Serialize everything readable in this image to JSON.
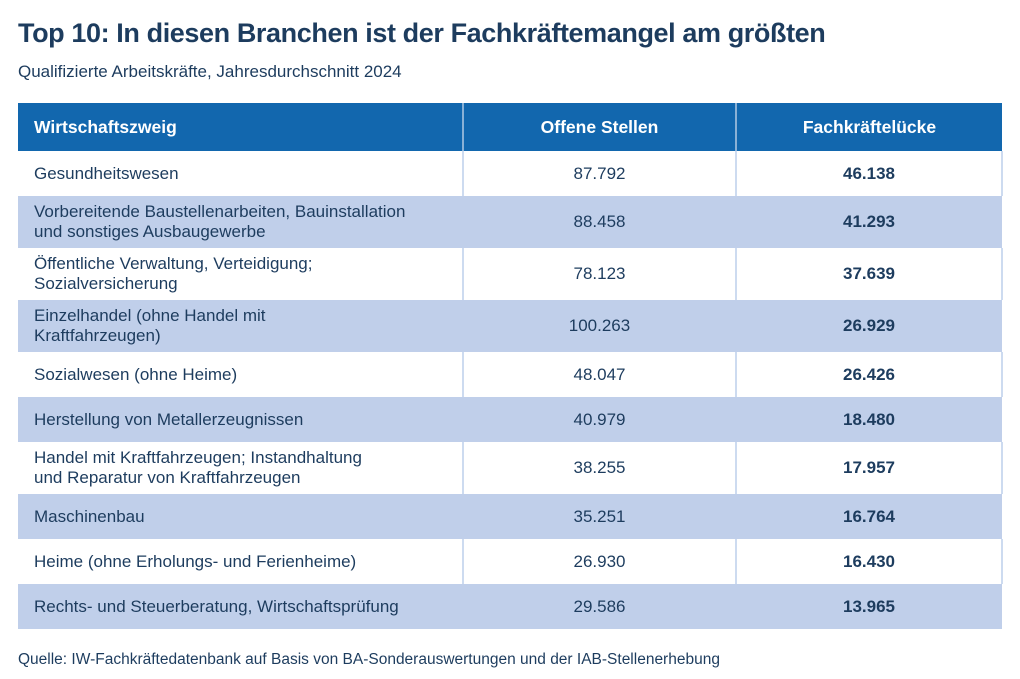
{
  "colors": {
    "header_bg": "#1267ae",
    "row_alt_bg": "#c0cfea",
    "text": "#1d3c5e",
    "divider": "#cddbf0",
    "header_divider": "#8ab1d6"
  },
  "chart_data": {
    "type": "table",
    "title": "Top 10: In diesen Branchen ist der Fachkräftemangel am größten",
    "subtitle": "Qualifizierte Arbeitskräfte, Jahresdurchschnitt 2024",
    "columns": [
      "Wirtschaftszweig",
      "Offene Stellen",
      "Fachkräftelücke"
    ],
    "rows": [
      {
        "sector": "Gesundheitswesen",
        "open_positions": 87792,
        "gap": 46138,
        "open_label": "87.792",
        "gap_label": "46.138"
      },
      {
        "sector": "Vorbereitende Baustellenarbeiten, Bauinstallation und sonstiges Ausbaugewerbe",
        "sector_display": "Vorbereitende Baustellenarbeiten, Bauinstallation\nund sonstiges Ausbaugewerbe",
        "open_positions": 88458,
        "gap": 41293,
        "open_label": "88.458",
        "gap_label": "41.293"
      },
      {
        "sector": "Öffentliche Verwaltung, Verteidigung; Sozialversicherung",
        "sector_display": "Öffentliche Verwaltung, Verteidigung;\nSozialversicherung",
        "open_positions": 78123,
        "gap": 37639,
        "open_label": "78.123",
        "gap_label": "37.639"
      },
      {
        "sector": "Einzelhandel (ohne Handel mit Kraftfahrzeugen)",
        "sector_display": "Einzelhandel (ohne Handel mit\nKraftfahrzeugen)",
        "open_positions": 100263,
        "gap": 26929,
        "open_label": "100.263",
        "gap_label": "26.929"
      },
      {
        "sector": "Sozialwesen (ohne Heime)",
        "open_positions": 48047,
        "gap": 26426,
        "open_label": "48.047",
        "gap_label": "26.426"
      },
      {
        "sector": "Herstellung von Metallerzeugnissen",
        "open_positions": 40979,
        "gap": 18480,
        "open_label": "40.979",
        "gap_label": "18.480"
      },
      {
        "sector": "Handel mit Kraftfahrzeugen; Instandhaltung und Reparatur von Kraftfahrzeugen",
        "sector_display": "Handel mit Kraftfahrzeugen; Instandhaltung\nund Reparatur von Kraftfahrzeugen",
        "open_positions": 38255,
        "gap": 17957,
        "open_label": "38.255",
        "gap_label": "17.957"
      },
      {
        "sector": "Maschinenbau",
        "open_positions": 35251,
        "gap": 16764,
        "open_label": "35.251",
        "gap_label": "16.764"
      },
      {
        "sector": "Heime (ohne Erholungs- und Ferienheime)",
        "open_positions": 26930,
        "gap": 16430,
        "open_label": "26.930",
        "gap_label": "16.430"
      },
      {
        "sector": "Rechts- und Steuerberatung, Wirtschaftsprüfung",
        "open_positions": 29586,
        "gap": 13965,
        "open_label": "29.586",
        "gap_label": "13.965"
      }
    ],
    "source": "Quelle: IW-Fachkräftedatenbank auf Basis von BA-Sonderauswertungen und der IAB-Stellenerhebung"
  }
}
